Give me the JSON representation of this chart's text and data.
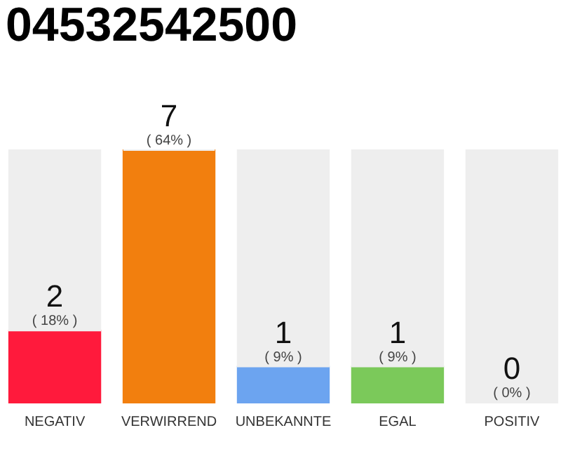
{
  "chart_data": {
    "type": "bar",
    "title": "04532542500",
    "categories": [
      "NEGATIV",
      "VERWIRREND",
      "UNBEKANNTE",
      "EGAL",
      "POSITIV"
    ],
    "stacked": true,
    "series": [
      {
        "colors": [
          "#ff1a3c",
          "#f27f0e",
          "#6ca4f0",
          "#7bc95a",
          "#eeeeee"
        ],
        "values": [
          2,
          7,
          1,
          1,
          0
        ],
        "value_labels": [
          "2",
          "7",
          "1",
          "1",
          "0"
        ]
      },
      {
        "color": "#eeeeee",
        "values": [
          5,
          0,
          6,
          6,
          7
        ]
      }
    ],
    "ylim": [
      0,
      7
    ],
    "tick_labels": "x",
    "annotations": [
      "( 18% )",
      "( 64% )",
      "( 9% )",
      "( 9% )",
      "( 0% )"
    ]
  }
}
